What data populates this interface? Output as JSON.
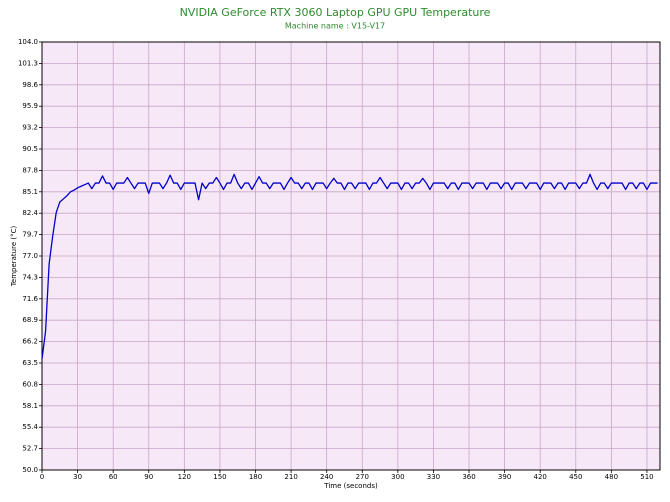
{
  "chart_data": {
    "type": "line",
    "title": "NVIDIA GeForce RTX 3060 Laptop GPU GPU Temperature",
    "subtitle": "Machine name : V15-V17",
    "x_label": "Time (seconds)",
    "y_label": "Temperature (°C)",
    "x": [
      0,
      3,
      6,
      9,
      12,
      15,
      18,
      21,
      24,
      27,
      30,
      33,
      36,
      39,
      42,
      45,
      48,
      51,
      54,
      57,
      60,
      63,
      66,
      69,
      72,
      75,
      78,
      81,
      84,
      87,
      90,
      93,
      96,
      99,
      102,
      105,
      108,
      111,
      114,
      117,
      120,
      123,
      126,
      129,
      132,
      135,
      138,
      141,
      144,
      147,
      150,
      153,
      156,
      159,
      162,
      165,
      168,
      171,
      174,
      177,
      180,
      183,
      186,
      189,
      192,
      195,
      198,
      201,
      204,
      207,
      210,
      213,
      216,
      219,
      222,
      225,
      228,
      231,
      234,
      237,
      240,
      243,
      246,
      249,
      252,
      255,
      258,
      261,
      264,
      267,
      270,
      273,
      276,
      279,
      282,
      285,
      288,
      291,
      294,
      297,
      300,
      303,
      306,
      309,
      312,
      315,
      318,
      321,
      324,
      327,
      330,
      333,
      336,
      339,
      342,
      345,
      348,
      351,
      354,
      357,
      360,
      363,
      366,
      369,
      372,
      375,
      378,
      381,
      384,
      387,
      390,
      393,
      396,
      399,
      402,
      405,
      408,
      411,
      414,
      417,
      420,
      423,
      426,
      429,
      432,
      435,
      438,
      441,
      444,
      447,
      450,
      453,
      456,
      459,
      462,
      465,
      468,
      471,
      474,
      477,
      480,
      483,
      486,
      489,
      492,
      495,
      498,
      501,
      504,
      507,
      510,
      513,
      516,
      519
    ],
    "series": [
      {
        "name": "GPU Temperature",
        "color": "#0000cc",
        "values": [
          64.0,
          67.5,
          76.0,
          79.5,
          82.5,
          83.8,
          84.2,
          84.6,
          85.1,
          85.3,
          85.6,
          85.8,
          86.0,
          86.2,
          85.5,
          86.2,
          86.2,
          87.1,
          86.2,
          86.2,
          85.4,
          86.2,
          86.2,
          86.2,
          86.9,
          86.2,
          85.5,
          86.2,
          86.2,
          86.2,
          84.9,
          86.2,
          86.2,
          86.2,
          85.5,
          86.2,
          87.2,
          86.2,
          86.2,
          85.4,
          86.2,
          86.2,
          86.2,
          86.2,
          84.1,
          86.2,
          85.5,
          86.2,
          86.2,
          86.9,
          86.2,
          85.4,
          86.2,
          86.2,
          87.3,
          86.2,
          85.5,
          86.2,
          86.2,
          85.4,
          86.2,
          87.0,
          86.2,
          86.2,
          85.5,
          86.2,
          86.2,
          86.2,
          85.4,
          86.2,
          86.9,
          86.2,
          86.2,
          85.5,
          86.2,
          86.2,
          85.4,
          86.2,
          86.2,
          86.2,
          85.5,
          86.2,
          86.8,
          86.2,
          86.2,
          85.4,
          86.2,
          86.2,
          85.5,
          86.2,
          86.2,
          86.2,
          85.4,
          86.2,
          86.2,
          86.9,
          86.2,
          85.5,
          86.2,
          86.2,
          86.2,
          85.4,
          86.2,
          86.2,
          85.5,
          86.2,
          86.2,
          86.8,
          86.2,
          85.4,
          86.2,
          86.2,
          86.2,
          86.2,
          85.5,
          86.2,
          86.2,
          85.4,
          86.2,
          86.2,
          86.2,
          85.5,
          86.2,
          86.2,
          86.2,
          85.4,
          86.2,
          86.2,
          86.2,
          85.5,
          86.2,
          86.2,
          85.4,
          86.2,
          86.2,
          86.2,
          85.5,
          86.2,
          86.2,
          86.2,
          85.4,
          86.2,
          86.2,
          86.2,
          85.5,
          86.2,
          86.2,
          85.4,
          86.2,
          86.2,
          86.2,
          85.5,
          86.2,
          86.2,
          87.3,
          86.2,
          85.4,
          86.2,
          86.2,
          85.5,
          86.2,
          86.2,
          86.2,
          86.2,
          85.4,
          86.2,
          86.2,
          85.5,
          86.2,
          86.2,
          85.4,
          86.2,
          86.2,
          86.2
        ]
      }
    ],
    "xlim": [
      0,
      521
    ],
    "xticks": [
      0,
      30,
      60,
      90,
      120,
      150,
      180,
      210,
      240,
      270,
      300,
      330,
      360,
      390,
      420,
      450,
      480,
      510
    ],
    "ylim": [
      50,
      104
    ],
    "yticks": [
      {
        "value": 50,
        "label": "50.0"
      },
      52.7,
      55.4,
      58.1,
      60.8,
      63.5,
      66.2,
      68.9,
      71.6,
      74.3,
      {
        "value": 77,
        "label": "77.0"
      },
      79.7,
      82.4,
      85.1,
      87.8,
      90.5,
      93.2,
      95.9,
      98.6,
      101.3,
      {
        "value": 104,
        "label": "104.0"
      }
    ],
    "grid": true,
    "plot_background": "#f7e8f7",
    "grid_color": "#c9a6c9"
  }
}
